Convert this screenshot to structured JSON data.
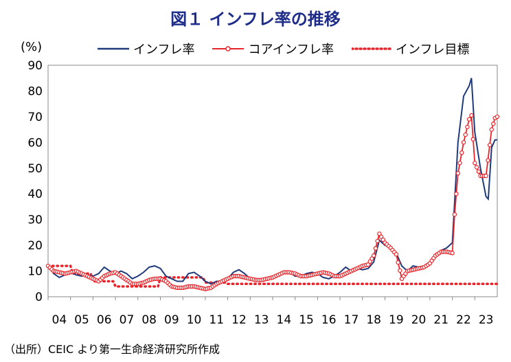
{
  "title": "図１ インフレ率の推移",
  "source": "（出所）CEIC より第一生命経済研究所作成",
  "chart_data": {
    "type": "line",
    "ylabel": "(%)",
    "ylim": [
      0,
      90
    ],
    "yticks": [
      0,
      10,
      20,
      30,
      40,
      50,
      60,
      70,
      80,
      90
    ],
    "xticks": [
      "04",
      "05",
      "06",
      "07",
      "08",
      "09",
      "10",
      "11",
      "12",
      "13",
      "14",
      "15",
      "16",
      "17",
      "18",
      "19",
      "20",
      "21",
      "22",
      "23"
    ],
    "colors": {
      "inflation": "#1f3a7a",
      "core": "#e8242a",
      "target": "#e8242a"
    },
    "series": [
      {
        "name": "インフレ率",
        "points": [
          [
            2004.0,
            12
          ],
          [
            2004.25,
            9
          ],
          [
            2004.5,
            7.5
          ],
          [
            2004.75,
            8.5
          ],
          [
            2005.0,
            9.5
          ],
          [
            2005.25,
            8.5
          ],
          [
            2005.5,
            8
          ],
          [
            2005.75,
            8.5
          ],
          [
            2006.0,
            8
          ],
          [
            2006.25,
            9
          ],
          [
            2006.5,
            11.5
          ],
          [
            2006.75,
            10
          ],
          [
            2007.0,
            9
          ],
          [
            2007.25,
            10
          ],
          [
            2007.5,
            9
          ],
          [
            2007.75,
            7
          ],
          [
            2008.0,
            8
          ],
          [
            2008.25,
            9.5
          ],
          [
            2008.5,
            11.5
          ],
          [
            2008.75,
            12
          ],
          [
            2009.0,
            11
          ],
          [
            2009.25,
            8
          ],
          [
            2009.5,
            7
          ],
          [
            2009.75,
            6
          ],
          [
            2010.0,
            6
          ],
          [
            2010.25,
            9
          ],
          [
            2010.5,
            9.5
          ],
          [
            2010.75,
            8
          ],
          [
            2011.0,
            6
          ],
          [
            2011.25,
            5
          ],
          [
            2011.5,
            6
          ],
          [
            2011.75,
            6
          ],
          [
            2012.0,
            7
          ],
          [
            2012.25,
            9.5
          ],
          [
            2012.5,
            10.5
          ],
          [
            2012.75,
            9
          ],
          [
            2013.0,
            7
          ],
          [
            2013.25,
            6
          ],
          [
            2013.5,
            6.5
          ],
          [
            2013.75,
            7
          ],
          [
            2014.0,
            7.5
          ],
          [
            2014.25,
            8.5
          ],
          [
            2014.5,
            9.5
          ],
          [
            2014.75,
            9.5
          ],
          [
            2015.0,
            8
          ],
          [
            2015.25,
            8
          ],
          [
            2015.5,
            9
          ],
          [
            2015.75,
            9.5
          ],
          [
            2016.0,
            9
          ],
          [
            2016.25,
            7.5
          ],
          [
            2016.5,
            7
          ],
          [
            2016.75,
            8
          ],
          [
            2017.0,
            9.5
          ],
          [
            2017.25,
            11.5
          ],
          [
            2017.5,
            10
          ],
          [
            2017.75,
            11
          ],
          [
            2018.0,
            10.5
          ],
          [
            2018.25,
            11
          ],
          [
            2018.5,
            13.5
          ],
          [
            2018.75,
            22
          ],
          [
            2019.0,
            20
          ],
          [
            2019.25,
            19
          ],
          [
            2019.5,
            17
          ],
          [
            2019.75,
            12
          ],
          [
            2020.0,
            10
          ],
          [
            2020.25,
            12
          ],
          [
            2020.5,
            11.5
          ],
          [
            2020.75,
            12
          ],
          [
            2021.0,
            13
          ],
          [
            2021.25,
            16
          ],
          [
            2021.5,
            18
          ],
          [
            2021.75,
            19
          ],
          [
            2022.0,
            21
          ],
          [
            2022.25,
            60
          ],
          [
            2022.5,
            78
          ],
          [
            2022.75,
            82
          ],
          [
            2022.85,
            85
          ],
          [
            2023.0,
            64
          ],
          [
            2023.25,
            50
          ],
          [
            2023.5,
            39
          ],
          [
            2023.6,
            38
          ],
          [
            2023.75,
            58
          ],
          [
            2023.9,
            61
          ],
          [
            2024.0,
            61
          ]
        ]
      },
      {
        "name": "コアインフレ率",
        "points": [
          [
            2004.0,
            12
          ],
          [
            2004.25,
            10
          ],
          [
            2004.5,
            9.5
          ],
          [
            2004.75,
            9
          ],
          [
            2005.0,
            9.5
          ],
          [
            2005.25,
            10
          ],
          [
            2005.5,
            9
          ],
          [
            2005.75,
            8
          ],
          [
            2006.0,
            7
          ],
          [
            2006.25,
            6
          ],
          [
            2006.5,
            8
          ],
          [
            2006.75,
            9
          ],
          [
            2007.0,
            9.5
          ],
          [
            2007.25,
            8
          ],
          [
            2007.5,
            6.5
          ],
          [
            2007.75,
            5
          ],
          [
            2008.0,
            5
          ],
          [
            2008.25,
            5.5
          ],
          [
            2008.5,
            6.5
          ],
          [
            2008.75,
            7
          ],
          [
            2009.0,
            7
          ],
          [
            2009.25,
            6
          ],
          [
            2009.5,
            4
          ],
          [
            2009.75,
            3.5
          ],
          [
            2010.0,
            3.5
          ],
          [
            2010.25,
            4
          ],
          [
            2010.5,
            4
          ],
          [
            2010.75,
            3.5
          ],
          [
            2011.0,
            3
          ],
          [
            2011.25,
            3.5
          ],
          [
            2011.5,
            5
          ],
          [
            2011.75,
            6
          ],
          [
            2012.0,
            7
          ],
          [
            2012.25,
            8
          ],
          [
            2012.5,
            8
          ],
          [
            2012.75,
            7.5
          ],
          [
            2013.0,
            7
          ],
          [
            2013.25,
            6.5
          ],
          [
            2013.5,
            6.5
          ],
          [
            2013.75,
            7
          ],
          [
            2014.0,
            7.5
          ],
          [
            2014.25,
            8.5
          ],
          [
            2014.5,
            9.5
          ],
          [
            2014.75,
            9.5
          ],
          [
            2015.0,
            9
          ],
          [
            2015.25,
            8
          ],
          [
            2015.5,
            8
          ],
          [
            2015.75,
            8.5
          ],
          [
            2016.0,
            9
          ],
          [
            2016.25,
            9.5
          ],
          [
            2016.5,
            9
          ],
          [
            2016.75,
            8
          ],
          [
            2017.0,
            8
          ],
          [
            2017.25,
            9
          ],
          [
            2017.5,
            10
          ],
          [
            2017.75,
            11
          ],
          [
            2018.0,
            12
          ],
          [
            2018.25,
            12.5
          ],
          [
            2018.5,
            16
          ],
          [
            2018.75,
            24.5
          ],
          [
            2019.0,
            21
          ],
          [
            2019.25,
            19
          ],
          [
            2019.5,
            16.5
          ],
          [
            2019.75,
            7
          ],
          [
            2020.0,
            10
          ],
          [
            2020.25,
            10.5
          ],
          [
            2020.5,
            11
          ],
          [
            2020.75,
            11.5
          ],
          [
            2021.0,
            13
          ],
          [
            2021.25,
            16
          ],
          [
            2021.5,
            17.5
          ],
          [
            2021.75,
            17.5
          ],
          [
            2022.0,
            17
          ],
          [
            2022.1,
            32
          ],
          [
            2022.25,
            48
          ],
          [
            2022.5,
            60
          ],
          [
            2022.75,
            69
          ],
          [
            2022.85,
            70.5
          ],
          [
            2023.0,
            52
          ],
          [
            2023.25,
            47
          ],
          [
            2023.5,
            47
          ],
          [
            2023.75,
            65
          ],
          [
            2023.9,
            69.5
          ],
          [
            2024.0,
            70
          ]
        ]
      },
      {
        "name": "インフレ目標",
        "points": [
          [
            2004.0,
            12
          ],
          [
            2005.0,
            12
          ],
          [
            2005.1,
            9
          ],
          [
            2005.9,
            9
          ],
          [
            2006.0,
            6
          ],
          [
            2006.9,
            6
          ],
          [
            2007.0,
            4
          ],
          [
            2008.9,
            4
          ],
          [
            2009.0,
            7.5
          ],
          [
            2010.9,
            7.5
          ],
          [
            2011.0,
            5.5
          ],
          [
            2011.9,
            5.5
          ],
          [
            2012.0,
            5
          ],
          [
            2024.0,
            5
          ]
        ]
      }
    ]
  }
}
